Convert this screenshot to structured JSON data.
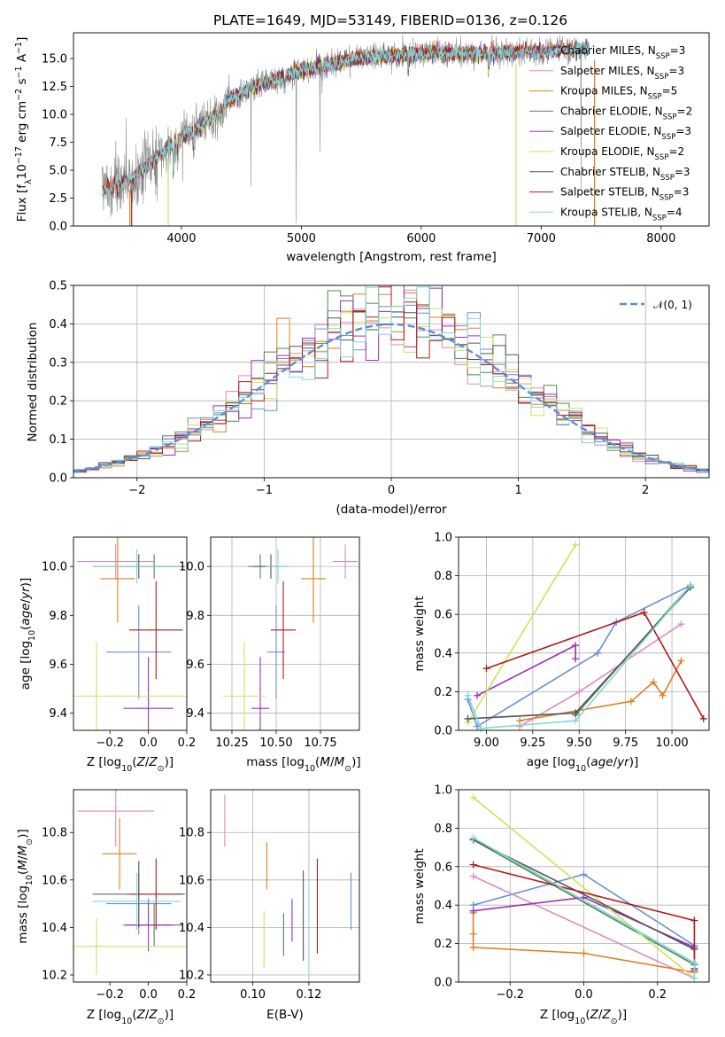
{
  "title": "PLATE=1649, MJD=53149, FIBERID=0136, z=0.126",
  "colors": [
    "#6a8fd8",
    "#e08ac0",
    "#e07f1e",
    "#508a4e",
    "#9b30b8",
    "#cfe35a",
    "#555555",
    "#b01a1a",
    "#7fd6dc"
  ],
  "chart_data": [
    {
      "id": "spectrum",
      "type": "line",
      "xlabel": "wavelength [Angstrom, rest frame]",
      "ylabel": "Flux [f_λ10^{-17} erg cm^{-2} s^{-1} A^{-1}]",
      "xlim": [
        3100,
        8400
      ],
      "ylim": [
        0,
        17.3
      ],
      "xticks": [
        "4000",
        "5000",
        "6000",
        "7000",
        "8000"
      ],
      "yticks": [
        "0.0",
        "2.5",
        "5.0",
        "7.5",
        "10.0",
        "12.5",
        "15.0"
      ],
      "legend_position": "right",
      "continuum": {
        "x": [
          3340,
          3450,
          3600,
          3800,
          4000,
          4200,
          4400,
          4600,
          4800,
          5000,
          5200,
          5400,
          5600,
          5800,
          6000,
          6200,
          6400,
          6600,
          6800,
          7000,
          7200,
          7400
        ],
        "y": [
          3.2,
          3.6,
          4.3,
          6.2,
          8.0,
          9.2,
          11.3,
          12.5,
          13.2,
          13.9,
          14.4,
          14.9,
          15.2,
          15.3,
          15.4,
          15.5,
          15.4,
          15.5,
          15.6,
          15.6,
          15.8,
          15.9
        ]
      },
      "series": [
        {
          "name": "Chabrier MILES, N_SSP=3",
          "legend": "Chabrier MILES, N",
          "sub": "SSP",
          "suffix": "=3",
          "x0": 3340,
          "x1": 7400
        },
        {
          "name": "Salpeter MILES, N_SSP=3",
          "legend": "Salpeter MILES, N",
          "sub": "SSP",
          "suffix": "=3",
          "x0": 3340,
          "x1": 7400
        },
        {
          "name": "Kroupa MILES, N_SSP=5",
          "legend": "Kroupa MILES, N",
          "sub": "SSP",
          "suffix": "=5",
          "x0": 3340,
          "x1": 7400
        },
        {
          "name": "Chabrier ELODIE, N_SSP=2",
          "legend": "Chabrier ELODIE, N",
          "sub": "SSP",
          "suffix": "=2",
          "x0": 3900,
          "x1": 6800
        },
        {
          "name": "Salpeter ELODIE, N_SSP=3",
          "legend": "Salpeter ELODIE, N",
          "sub": "SSP",
          "suffix": "=3",
          "x0": 3900,
          "x1": 6800
        },
        {
          "name": "Kroupa ELODIE, N_SSP=2",
          "legend": "Kroupa ELODIE, N",
          "sub": "SSP",
          "suffix": "=2",
          "x0": 3900,
          "x1": 6800
        },
        {
          "name": "Chabrier STELIB, N_SSP=3",
          "legend": "Chabrier STELIB, N",
          "sub": "SSP",
          "suffix": "=3",
          "x0": 3340,
          "x1": 7400
        },
        {
          "name": "Salpeter STELIB, N_SSP=3",
          "legend": "Salpeter STELIB, N",
          "sub": "SSP",
          "suffix": "=3",
          "x0": 3340,
          "x1": 7400
        },
        {
          "name": "Kroupa STELIB, N_SSP=4",
          "legend": "Kroupa STELIB, N",
          "sub": "SSP",
          "suffix": "=4",
          "x0": 3340,
          "x1": 7400
        }
      ]
    },
    {
      "id": "residuals",
      "type": "line",
      "xlabel": "(data-model)/error",
      "ylabel": "Normed distribution",
      "xlim": [
        -2.5,
        2.5
      ],
      "ylim": [
        0,
        0.5
      ],
      "xticks": [
        "−2",
        "−1",
        "0",
        "1",
        "2"
      ],
      "yticks": [
        "0.0",
        "0.1",
        "0.2",
        "0.3",
        "0.4",
        "0.5"
      ],
      "grid": true,
      "legend_position": "top-right",
      "reference": {
        "name": "𝒩(0, 1)",
        "mean": 0,
        "sigma": 1
      },
      "bin_width": 0.1
    },
    {
      "id": "age_vs_Z",
      "type": "scatter",
      "xlabel": "Z [log10(Z/Z⊙)]",
      "ylabel": "age  [log10(age/yr)]",
      "xlim": [
        -0.39,
        0.2
      ],
      "ylim": [
        9.33,
        10.12
      ],
      "xticks": [
        "−0.2",
        "0.0",
        "0.2"
      ],
      "yticks": [
        "9.4",
        "9.6",
        "9.8",
        "10.0"
      ],
      "points": [
        {
          "x": -0.05,
          "xerr": 0.17,
          "y": 9.65,
          "yerr": 0.19
        },
        {
          "x": -0.17,
          "xerr": 0.2,
          "y": 10.02,
          "yerr": 0.07
        },
        {
          "x": -0.16,
          "xerr": 0.09,
          "y": 9.95,
          "yerr": 0.18
        },
        {
          "x": 0.03,
          "xerr": 0.15,
          "y": 10.0,
          "yerr": 0.05
        },
        {
          "x": 0.0,
          "xerr": 0.13,
          "y": 9.42,
          "yerr": 0.21
        },
        {
          "x": -0.27,
          "xerr": 0.48,
          "y": 9.47,
          "yerr": 0.22
        },
        {
          "x": -0.05,
          "xerr": 0.24,
          "y": 10.0,
          "yerr": 0.05
        },
        {
          "x": 0.04,
          "xerr": 0.14,
          "y": 9.74,
          "yerr": 0.2
        },
        {
          "x": -0.06,
          "xerr": 0.23,
          "y": 10.0,
          "yerr": 0.07
        }
      ]
    },
    {
      "id": "age_vs_mass",
      "type": "scatter",
      "xlabel": "mass [log10(M/M⊙)]",
      "ylabel": "",
      "xlim": [
        10.13,
        10.97
      ],
      "ylim": [
        9.33,
        10.12
      ],
      "xticks": [
        "10.25",
        "10.50",
        "10.75"
      ],
      "yticks": [
        "9.4",
        "9.6",
        "9.8",
        "10.0"
      ],
      "grid": true,
      "points": [
        {
          "x": 10.5,
          "xerr": 0.05,
          "y": 9.65,
          "yerr": 0.19
        },
        {
          "x": 10.89,
          "xerr": 0.07,
          "y": 10.02,
          "yerr": 0.07
        },
        {
          "x": 10.71,
          "xerr": 0.07,
          "y": 9.95,
          "yerr": 0.18
        },
        {
          "x": 10.41,
          "xerr": 0.07,
          "y": 10.0,
          "yerr": 0.05
        },
        {
          "x": 10.41,
          "xerr": 0.05,
          "y": 9.42,
          "yerr": 0.21
        },
        {
          "x": 10.32,
          "xerr": 0.12,
          "y": 9.47,
          "yerr": 0.22
        },
        {
          "x": 10.47,
          "xerr": 0.1,
          "y": 10.0,
          "yerr": 0.05
        },
        {
          "x": 10.54,
          "xerr": 0.07,
          "y": 9.74,
          "yerr": 0.2
        },
        {
          "x": 10.51,
          "xerr": 0.07,
          "y": 10.0,
          "yerr": 0.07
        }
      ]
    },
    {
      "id": "weight_vs_age",
      "type": "line",
      "xlabel": "age  [log10(age/yr)]",
      "ylabel": "mass weight",
      "xlim": [
        8.85,
        10.2
      ],
      "ylim": [
        0,
        1
      ],
      "xticks": [
        "9.00",
        "9.25",
        "9.50",
        "9.75",
        "10.00"
      ],
      "yticks": [
        "0.0",
        "0.2",
        "0.4",
        "0.6",
        "0.8",
        "1.0"
      ],
      "grid": true,
      "series": [
        {
          "x": [
            8.9,
            8.95,
            9.6,
            9.7,
            10.1
          ],
          "y": [
            0.16,
            0.02,
            0.4,
            0.56,
            0.75
          ]
        },
        {
          "x": [
            9.18,
            9.5,
            10.05
          ],
          "y": [
            0.02,
            0.2,
            0.55
          ]
        },
        {
          "x": [
            9.18,
            9.78,
            9.9,
            9.95,
            10.05
          ],
          "y": [
            0.05,
            0.15,
            0.25,
            0.18,
            0.36
          ]
        },
        {
          "x": [
            9.48,
            10.1
          ],
          "y": [
            0.08,
            0.75
          ]
        },
        {
          "x": [
            8.95,
            9.48,
            9.48
          ],
          "y": [
            0.18,
            0.44,
            0.37
          ]
        },
        {
          "x": [
            8.9,
            9.48
          ],
          "y": [
            0.04,
            0.96
          ]
        },
        {
          "x": [
            8.9,
            9.48,
            10.1
          ],
          "y": [
            0.06,
            0.09,
            0.74
          ]
        },
        {
          "x": [
            9.0,
            9.85,
            10.17
          ],
          "y": [
            0.32,
            0.61,
            0.06
          ]
        },
        {
          "x": [
            8.9,
            8.97,
            9.48,
            10.1
          ],
          "y": [
            0.18,
            0.01,
            0.05,
            0.75
          ]
        }
      ]
    },
    {
      "id": "mass_vs_Z",
      "type": "scatter",
      "xlabel": "Z [log10(Z/Z⊙)]",
      "ylabel": "mass [log10(M/M⊙)]",
      "xlim": [
        -0.39,
        0.2
      ],
      "ylim": [
        10.17,
        10.98
      ],
      "xticks": [
        "−0.2",
        "0.0",
        "0.2"
      ],
      "yticks": [
        "10.2",
        "10.4",
        "10.6",
        "10.8"
      ],
      "points": [
        {
          "x": -0.05,
          "xerr": 0.17,
          "y": 10.5,
          "yerr": 0.13
        },
        {
          "x": -0.17,
          "xerr": 0.2,
          "y": 10.89,
          "yerr": 0.15
        },
        {
          "x": -0.15,
          "xerr": 0.09,
          "y": 10.71,
          "yerr": 0.15
        },
        {
          "x": 0.03,
          "xerr": 0.15,
          "y": 10.41,
          "yerr": 0.09
        },
        {
          "x": 0.0,
          "xerr": 0.13,
          "y": 10.41,
          "yerr": 0.11
        },
        {
          "x": -0.27,
          "xerr": 0.48,
          "y": 10.32,
          "yerr": 0.12
        },
        {
          "x": -0.05,
          "xerr": 0.24,
          "y": 10.54,
          "yerr": 0.14
        },
        {
          "x": 0.04,
          "xerr": 0.14,
          "y": 10.54,
          "yerr": 0.15
        },
        {
          "x": -0.06,
          "xerr": 0.23,
          "y": 10.51,
          "yerr": 0.12
        }
      ]
    },
    {
      "id": "mass_vs_ebv",
      "type": "scatter",
      "xlabel": "E(B-V)",
      "ylabel": "",
      "xlim": [
        0.085,
        0.138
      ],
      "ylim": [
        10.17,
        10.98
      ],
      "xticks": [
        "0.10",
        "0.12"
      ],
      "yticks": [
        "10.2",
        "10.4",
        "10.6",
        "10.8"
      ],
      "grid": true,
      "points": [
        {
          "x": 0.135,
          "y": 10.51,
          "yerr": 0.12
        },
        {
          "x": 0.09,
          "y": 10.85,
          "yerr": 0.11
        },
        {
          "x": 0.105,
          "y": 10.66,
          "yerr": 0.1
        },
        {
          "x": 0.111,
          "y": 10.37,
          "yerr": 0.09
        },
        {
          "x": 0.114,
          "y": 10.43,
          "yerr": 0.09
        },
        {
          "x": 0.104,
          "y": 10.35,
          "yerr": 0.12
        },
        {
          "x": 0.118,
          "y": 10.45,
          "yerr": 0.19
        },
        {
          "x": 0.123,
          "y": 10.49,
          "yerr": 0.2
        },
        {
          "x": 0.12,
          "y": 10.4,
          "yerr": 0.2
        }
      ]
    },
    {
      "id": "weight_vs_Z",
      "type": "line",
      "xlabel": "Z [log10(Z/Z⊙)]",
      "ylabel": "mass weight",
      "xlim": [
        -0.34,
        0.34
      ],
      "ylim": [
        0,
        1
      ],
      "xticks": [
        "−0.2",
        "0.0",
        "0.2"
      ],
      "yticks": [
        "0.0",
        "0.2",
        "0.4",
        "0.6",
        "0.8",
        "1.0"
      ],
      "grid": true,
      "series": [
        {
          "x": [
            -0.3,
            0.0,
            0.3
          ],
          "y": [
            0.4,
            0.56,
            0.19
          ]
        },
        {
          "x": [
            -0.3,
            0.3
          ],
          "y": [
            0.55,
            0.02
          ]
        },
        {
          "x": [
            -0.3,
            -0.3,
            -0.3,
            0.0,
            0.3
          ],
          "y": [
            0.36,
            0.25,
            0.18,
            0.15,
            0.05
          ]
        },
        {
          "x": [
            -0.3,
            0.3
          ],
          "y": [
            0.74,
            0.09
          ]
        },
        {
          "x": [
            -0.3,
            0.0,
            0.3
          ],
          "y": [
            0.37,
            0.44,
            0.18
          ]
        },
        {
          "x": [
            -0.3,
            0.3
          ],
          "y": [
            0.96,
            0.02
          ]
        },
        {
          "x": [
            -0.3,
            0.3,
            0.3
          ],
          "y": [
            0.74,
            0.17,
            0.07
          ]
        },
        {
          "x": [
            -0.3,
            0.3,
            0.3
          ],
          "y": [
            0.61,
            0.32,
            0.06
          ]
        },
        {
          "x": [
            -0.3,
            0.3,
            0.3
          ],
          "y": [
            0.75,
            0.1,
            0.02
          ]
        }
      ]
    }
  ]
}
